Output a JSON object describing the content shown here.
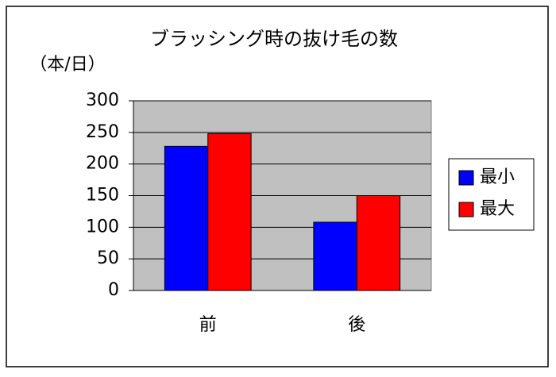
{
  "chart_data": {
    "type": "bar",
    "title": "ブラッシング時の抜け毛の数",
    "y_label": "（本/日）",
    "categories": [
      "前",
      "後"
    ],
    "series": [
      {
        "name": "最小",
        "color": "#0000ff",
        "values": [
          228,
          108
        ]
      },
      {
        "name": "最大",
        "color": "#ff0000",
        "values": [
          248,
          150
        ]
      }
    ],
    "ylim": [
      0,
      300
    ],
    "yticks": [
      0,
      50,
      100,
      150,
      200,
      250,
      300
    ],
    "grid": true,
    "legend": "right"
  }
}
